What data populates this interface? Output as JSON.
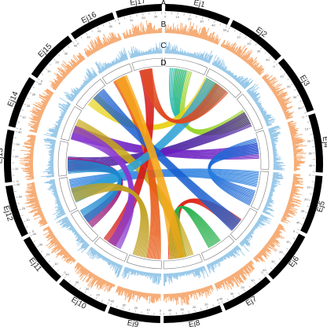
{
  "chart_data": {
    "type": "circos",
    "track_labels": [
      "A",
      "B",
      "C",
      "D"
    ],
    "chromosomes": [
      {
        "name": "Ej1",
        "length": 50
      },
      {
        "name": "Ej2",
        "length": 45
      },
      {
        "name": "Ej3",
        "length": 45
      },
      {
        "name": "Ej4",
        "length": 45
      },
      {
        "name": "Ej5",
        "length": 45
      },
      {
        "name": "Ej6",
        "length": 40
      },
      {
        "name": "Ej7",
        "length": 40
      },
      {
        "name": "Ej8",
        "length": 45
      },
      {
        "name": "Ej9",
        "length": 40
      },
      {
        "name": "Ej10",
        "length": 40
      },
      {
        "name": "Ej11",
        "length": 40
      },
      {
        "name": "Ej12",
        "length": 40
      },
      {
        "name": "Ej13",
        "length": 40
      },
      {
        "name": "Ej14",
        "length": 40
      },
      {
        "name": "Ej15",
        "length": 40
      },
      {
        "name": "Ej16",
        "length": 35
      },
      {
        "name": "Ej17",
        "length": 35
      }
    ],
    "links": [
      {
        "from": "Ej1",
        "to": "Ej3",
        "color": "#9ad32c"
      },
      {
        "from": "Ej1",
        "to": "Ej2",
        "color": "#1fb6a8"
      },
      {
        "from": "Ej2",
        "to": "Ej15",
        "color": "#e8d21a"
      },
      {
        "from": "Ej3",
        "to": "Ej13",
        "color": "#4a1fa0"
      },
      {
        "from": "Ej4",
        "to": "Ej14",
        "color": "#6a1cc0"
      },
      {
        "from": "Ej4",
        "to": "Ej5",
        "color": "#1e6ad6"
      },
      {
        "from": "Ej5",
        "to": "Ej12",
        "color": "#2a7fe0"
      },
      {
        "from": "Ej6",
        "to": "Ej8",
        "color": "#e02a1a"
      },
      {
        "from": "Ej7",
        "to": "Ej8",
        "color": "#26b04a"
      },
      {
        "from": "Ej8",
        "to": "Ej14",
        "color": "#c7a818"
      },
      {
        "from": "Ej9",
        "to": "Ej16",
        "color": "#e85a14"
      },
      {
        "from": "Ej10",
        "to": "Ej17",
        "color": "#d41a1a"
      },
      {
        "from": "Ej11",
        "to": "Ej13",
        "color": "#9a1a7a"
      },
      {
        "from": "Ej12",
        "to": "Ej2",
        "color": "#2ea0d6"
      },
      {
        "from": "Ej13",
        "to": "Ej11",
        "color": "#1a8ad0"
      },
      {
        "from": "Ej15",
        "to": "Ej6",
        "color": "#1a5fd0"
      },
      {
        "from": "Ej16",
        "to": "Ej8",
        "color": "#f5a81a"
      },
      {
        "from": "Ej17",
        "to": "Ej2",
        "color": "#e04a20"
      },
      {
        "from": "Ej14",
        "to": "Ej10",
        "color": "#8a3ad0"
      },
      {
        "from": "Ej9",
        "to": "Ej12",
        "color": "#c0a020"
      }
    ],
    "colors": {
      "chromosome_band": "#000000",
      "track_b": "#f5a66b",
      "track_c": "#8ec3e6",
      "track_d_fill": "#ffffff",
      "track_d_stroke": "#777777"
    }
  }
}
